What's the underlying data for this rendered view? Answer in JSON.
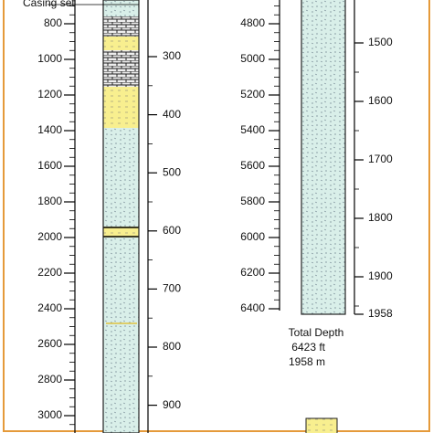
{
  "casing_label": "Casing set",
  "left": {
    "ft_ticks": [
      "800",
      "1000",
      "1200",
      "1400",
      "1600",
      "1800",
      "2000",
      "2200",
      "2400",
      "2600",
      "2800",
      "3000"
    ],
    "m_ticks": [
      "300",
      "400",
      "500",
      "600",
      "700",
      "800",
      "900"
    ]
  },
  "right": {
    "ft_ticks": [
      "4800",
      "5000",
      "5200",
      "5400",
      "5600",
      "5800",
      "6000",
      "6200",
      "6400"
    ],
    "m_ticks": [
      "1500",
      "1600",
      "1700",
      "1800",
      "1900",
      "1958"
    ]
  },
  "total_depth": {
    "title": "Total Depth",
    "ft": "6423 ft",
    "m": "1958 m"
  }
}
